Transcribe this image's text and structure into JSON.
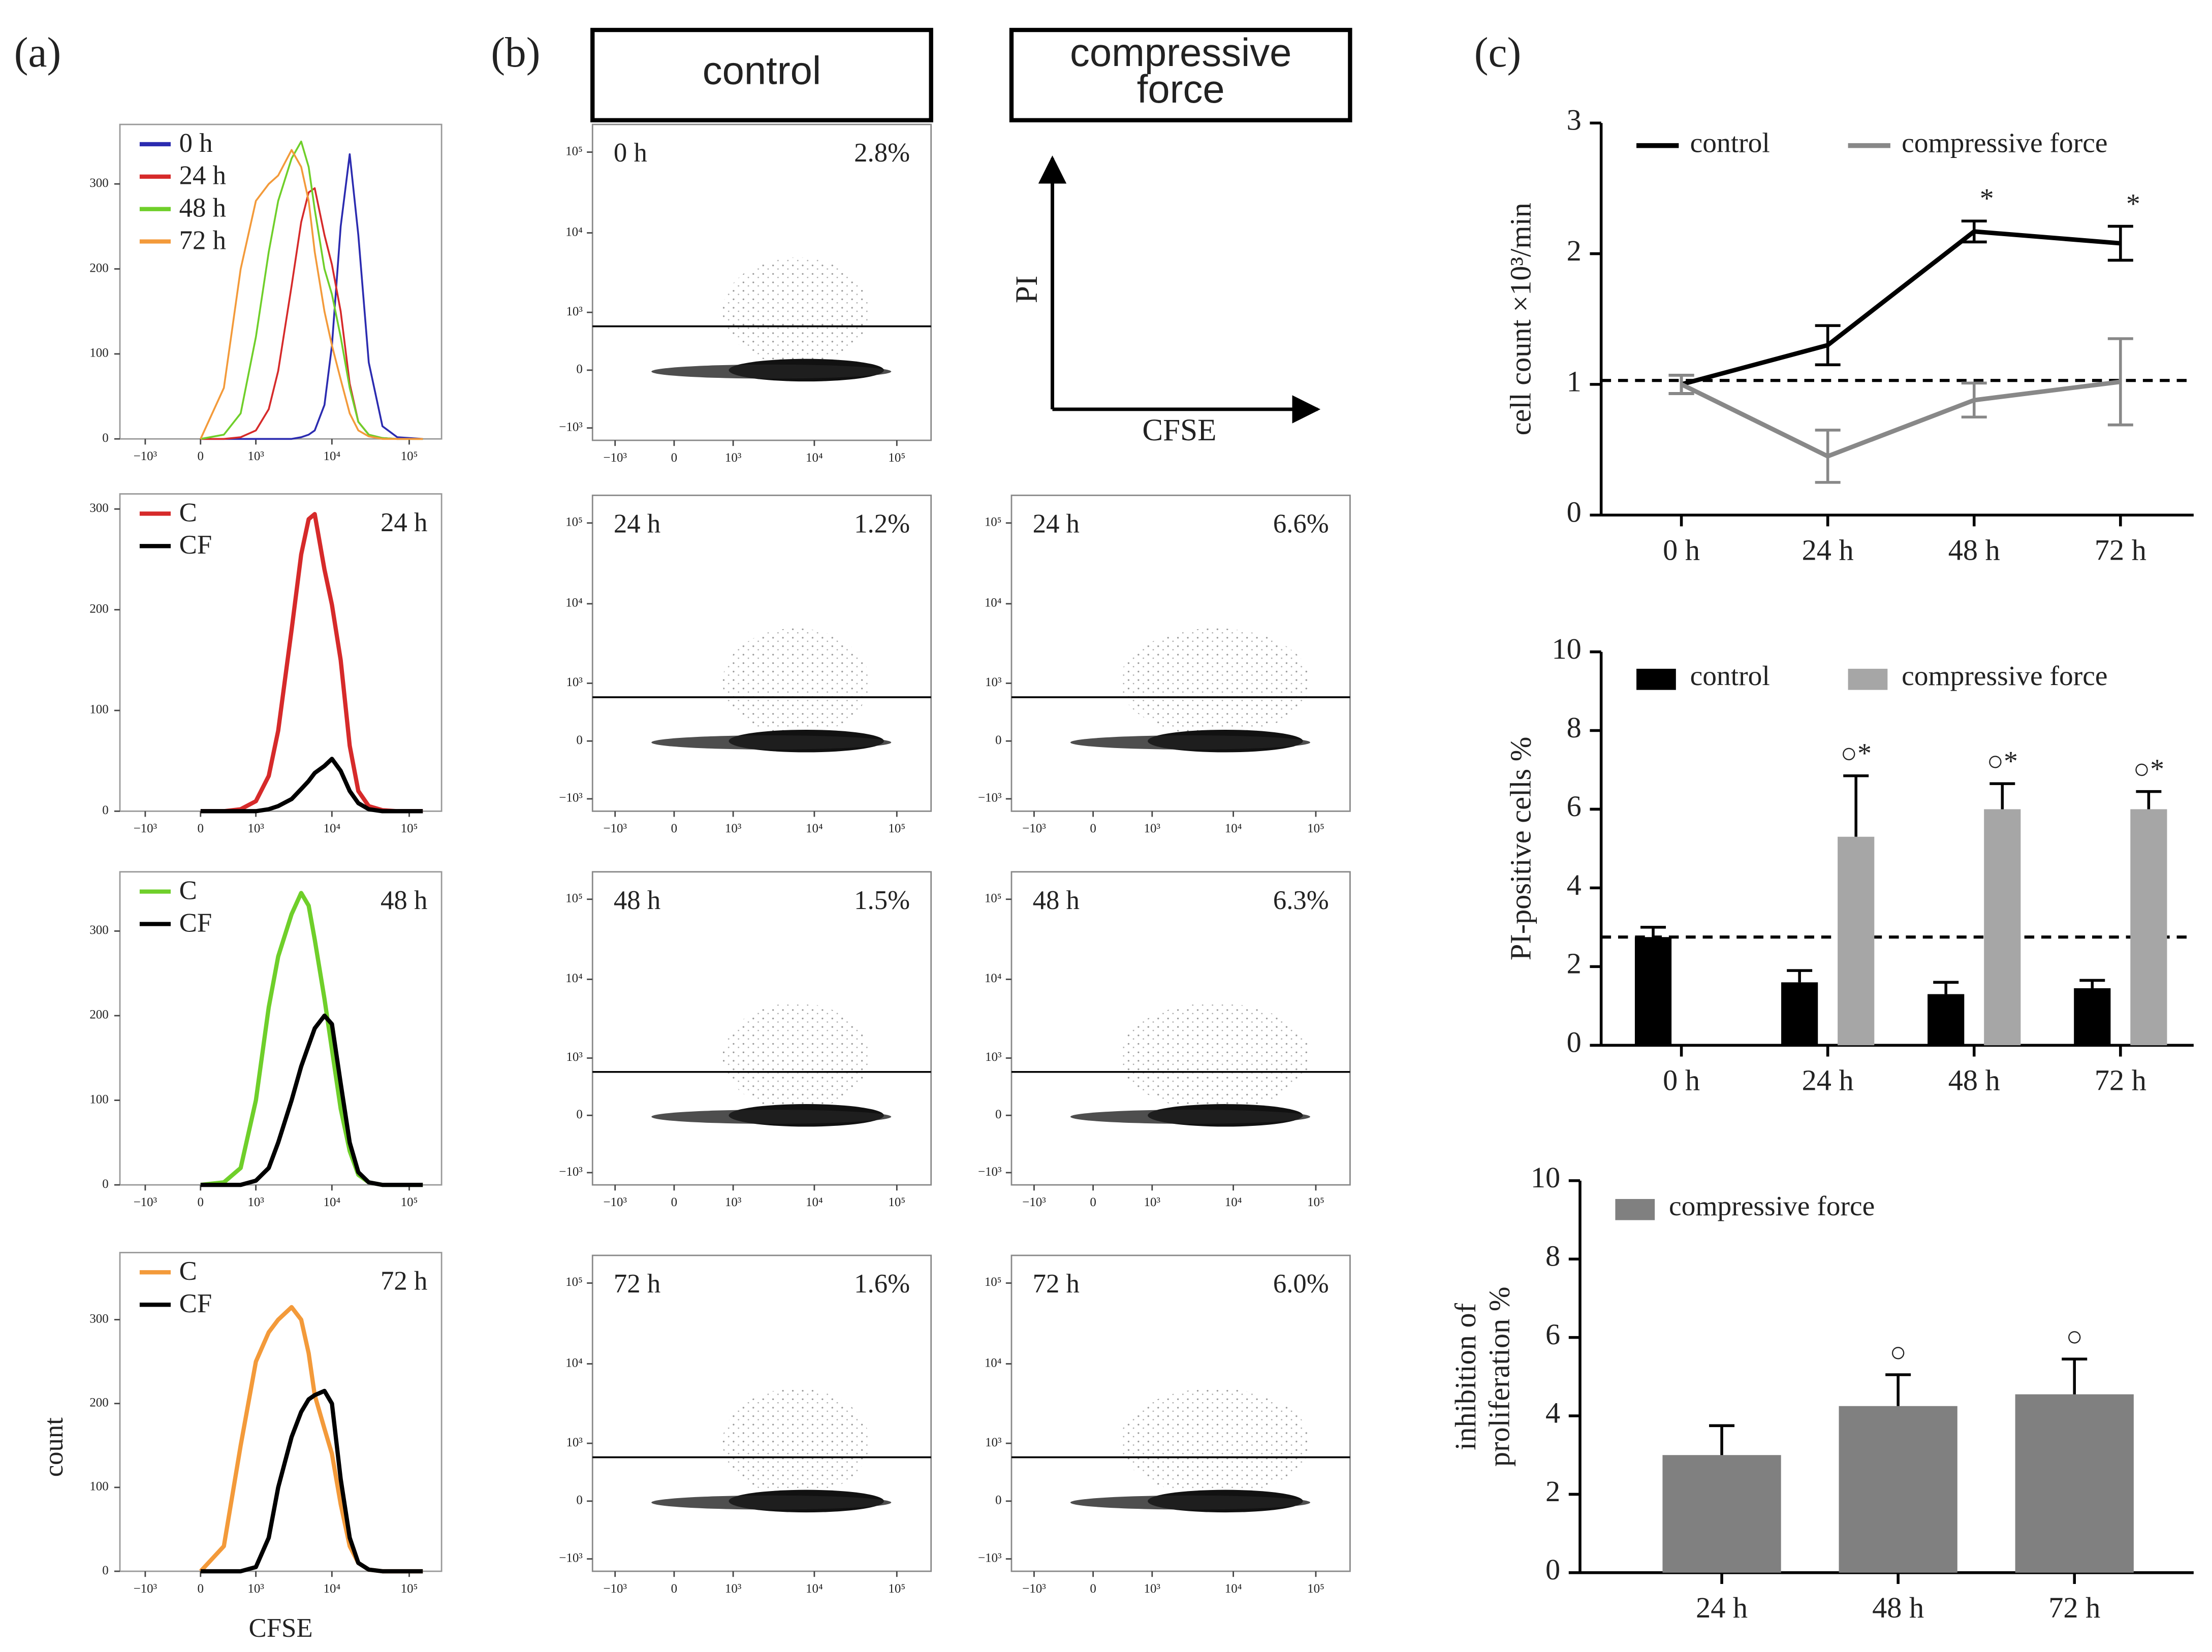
{
  "panel_labels": [
    "(a)",
    "(b)",
    "(c)"
  ],
  "panel_b": {
    "headers": [
      "control",
      "compressive force"
    ],
    "axis_labels": {
      "y": "PI",
      "x": "CFSE"
    },
    "columns": [
      [
        {
          "time": "0 h",
          "percent": "2.8%"
        },
        {
          "time": "24 h",
          "percent": "1.2%"
        },
        {
          "time": "48 h",
          "percent": "1.5%"
        },
        {
          "time": "72 h",
          "percent": "1.6%"
        }
      ],
      [
        {
          "time": "24 h",
          "percent": "6.6%"
        },
        {
          "time": "48 h",
          "percent": "6.3%"
        },
        {
          "time": "72 h",
          "percent": "6.0%"
        }
      ]
    ],
    "xlim": [
      -1930,
      260000
    ],
    "ylim": [
      -1450,
      220000
    ],
    "gate": 640,
    "xticks": [
      {
        "value": -1000,
        "label": "−10³"
      },
      0,
      {
        "value": 1000,
        "label": "10³"
      },
      {
        "value": 10000,
        "label": "10⁴"
      },
      {
        "value": 100000,
        "label": "10⁵"
      }
    ],
    "yticks": [
      {
        "value": -1000,
        "label": "−10³"
      },
      0,
      {
        "value": 1000,
        "label": "10³"
      },
      {
        "value": 10000,
        "label": "10⁴"
      },
      {
        "value": 100000,
        "label": "10⁵"
      }
    ]
  },
  "chart_data": [
    {
      "type": "line",
      "x_scale": "biexponential",
      "x": [
        0,
        300,
        600,
        1000,
        1500,
        2000,
        3000,
        4000,
        5000,
        6000,
        8000,
        10000,
        13000,
        17000,
        22000,
        30000,
        45000,
        70000,
        150000
      ],
      "series": [
        {
          "name": "0 h",
          "color": "#2b2bb0",
          "values": [
            0,
            0,
            0,
            0,
            0,
            0,
            0,
            2,
            5,
            10,
            40,
            110,
            250,
            335,
            240,
            90,
            15,
            2,
            0
          ]
        },
        {
          "name": "24 h",
          "color": "#d62a2a",
          "values": [
            0,
            0,
            2,
            10,
            35,
            80,
            180,
            255,
            290,
            295,
            240,
            205,
            150,
            65,
            20,
            5,
            1,
            0,
            0
          ]
        },
        {
          "name": "48 h",
          "color": "#6fcf2a",
          "values": [
            0,
            5,
            30,
            120,
            220,
            280,
            330,
            350,
            320,
            270,
            200,
            170,
            120,
            60,
            20,
            5,
            1,
            0,
            0
          ]
        },
        {
          "name": "72 h",
          "color": "#f39a3a",
          "values": [
            0,
            60,
            200,
            280,
            300,
            310,
            340,
            320,
            280,
            220,
            150,
            110,
            70,
            30,
            10,
            3,
            0,
            0,
            0
          ]
        }
      ],
      "xlim": [
        -2190,
        262000
      ],
      "ylim": [
        0,
        370
      ],
      "yticks": [
        0,
        100,
        200,
        300
      ],
      "xticks": [
        {
          "value": -1000,
          "label": "−10³"
        },
        0,
        {
          "value": 1000,
          "label": "10³"
        },
        {
          "value": 10000,
          "label": "10⁴"
        },
        {
          "value": 100000,
          "label": "10⁵"
        }
      ]
    },
    {
      "type": "line",
      "x_scale": "biexponential",
      "title": "24 h",
      "x": [
        0,
        300,
        600,
        1000,
        1500,
        2000,
        3000,
        4000,
        5000,
        6000,
        8000,
        10000,
        13000,
        17000,
        22000,
        30000,
        45000,
        70000,
        150000
      ],
      "series": [
        {
          "name": "C",
          "color": "#d62a2a",
          "values": [
            0,
            0,
            2,
            10,
            35,
            80,
            180,
            255,
            290,
            295,
            240,
            205,
            150,
            65,
            20,
            5,
            1,
            0,
            0
          ]
        },
        {
          "name": "CF",
          "color": "#000000",
          "values": [
            0,
            0,
            0,
            0,
            2,
            5,
            12,
            22,
            30,
            38,
            45,
            52,
            40,
            20,
            8,
            2,
            0,
            0,
            0
          ]
        }
      ],
      "xlim": [
        -2190,
        262000
      ],
      "ylim": [
        0,
        315
      ],
      "yticks": [
        0,
        100,
        200,
        300
      ],
      "xticks": [
        {
          "value": -1000,
          "label": "−10³"
        },
        0,
        {
          "value": 1000,
          "label": "10³"
        },
        {
          "value": 10000,
          "label": "10⁴"
        },
        {
          "value": 100000,
          "label": "10⁵"
        }
      ]
    },
    {
      "type": "line",
      "x_scale": "biexponential",
      "title": "48 h",
      "x": [
        0,
        300,
        600,
        1000,
        1500,
        2000,
        3000,
        4000,
        5000,
        6000,
        8000,
        10000,
        13000,
        17000,
        22000,
        30000,
        45000,
        70000,
        150000
      ],
      "series": [
        {
          "name": "C",
          "color": "#6fcf2a",
          "values": [
            0,
            3,
            20,
            100,
            210,
            270,
            320,
            345,
            330,
            290,
            220,
            160,
            90,
            40,
            12,
            3,
            0,
            0,
            0
          ]
        },
        {
          "name": "CF",
          "color": "#000000",
          "values": [
            0,
            0,
            0,
            5,
            20,
            50,
            100,
            140,
            165,
            185,
            200,
            190,
            120,
            50,
            15,
            3,
            0,
            0,
            0
          ]
        }
      ],
      "xlim": [
        -2190,
        262000
      ],
      "ylim": [
        0,
        370
      ],
      "yticks": [
        0,
        100,
        200,
        300
      ],
      "xticks": [
        {
          "value": -1000,
          "label": "−10³"
        },
        0,
        {
          "value": 1000,
          "label": "10³"
        },
        {
          "value": 10000,
          "label": "10⁴"
        },
        {
          "value": 100000,
          "label": "10⁵"
        }
      ]
    },
    {
      "type": "line",
      "x_scale": "biexponential",
      "title": "72 h",
      "x_label": "CFSE",
      "y_label": "count",
      "x": [
        0,
        300,
        600,
        1000,
        1500,
        2000,
        3000,
        4000,
        5000,
        6000,
        8000,
        10000,
        13000,
        17000,
        22000,
        30000,
        45000,
        70000,
        150000
      ],
      "series": [
        {
          "name": "C",
          "color": "#f39a3a",
          "values": [
            0,
            30,
            150,
            250,
            285,
            300,
            315,
            300,
            260,
            210,
            170,
            140,
            80,
            30,
            10,
            2,
            0,
            0,
            0
          ]
        },
        {
          "name": "CF",
          "color": "#000000",
          "values": [
            0,
            0,
            0,
            5,
            40,
            100,
            160,
            190,
            205,
            210,
            215,
            200,
            110,
            40,
            10,
            2,
            0,
            0,
            0
          ]
        }
      ],
      "xlim": [
        -2190,
        262000
      ],
      "ylim": [
        0,
        380
      ],
      "yticks": [
        0,
        100,
        200,
        300
      ],
      "xticks": [
        {
          "value": -1000,
          "label": "−10³"
        },
        0,
        {
          "value": 1000,
          "label": "10³"
        },
        {
          "value": 10000,
          "label": "10⁴"
        },
        {
          "value": 100000,
          "label": "10⁵"
        }
      ]
    },
    {
      "type": "line",
      "y_label": "cell count ×10³/min",
      "categories": [
        "0 h",
        "24 h",
        "48 h",
        "72 h"
      ],
      "series": [
        {
          "name": "control",
          "color": "#000000",
          "values": [
            1.0,
            1.3,
            2.17,
            2.08
          ],
          "errors": [
            0.07,
            0.15,
            0.08,
            0.13
          ],
          "annotations": [
            null,
            null,
            "*",
            "*"
          ]
        },
        {
          "name": "compressive force",
          "color": "#888888",
          "values": [
            1.0,
            0.45,
            0.88,
            1.02
          ],
          "errors": [
            0.07,
            0.2,
            0.13,
            0.33
          ]
        }
      ],
      "reference_line": 1.03,
      "ylim": [
        0,
        3
      ],
      "yticks": [
        0,
        1,
        2,
        3
      ],
      "legend": "top"
    },
    {
      "type": "bar",
      "y_label": "PI-positive cells %",
      "categories": [
        "0 h",
        "24 h",
        "48 h",
        "72 h"
      ],
      "series": [
        {
          "name": "control",
          "color": "#000000",
          "values": [
            2.75,
            1.6,
            1.3,
            1.45
          ],
          "errors": [
            0.25,
            0.3,
            0.3,
            0.2
          ]
        },
        {
          "name": "compressive force",
          "color": "#a6a6a6",
          "values": [
            null,
            5.3,
            6.0,
            6.0
          ],
          "errors": [
            null,
            1.55,
            0.65,
            0.45
          ],
          "annotations": [
            null,
            "○*",
            "○*",
            "○*"
          ]
        }
      ],
      "reference_line": 2.75,
      "ylim": [
        0,
        10
      ],
      "yticks": [
        0,
        2,
        4,
        6,
        8,
        10
      ],
      "legend": "top"
    },
    {
      "type": "bar",
      "y_label": [
        "inhibition of",
        "proliferation %"
      ],
      "categories": [
        "24 h",
        "48 h",
        "72 h"
      ],
      "series": [
        {
          "name": "compressive force",
          "color": "#808080",
          "values": [
            3.0,
            4.25,
            4.55
          ],
          "errors": [
            0.75,
            0.8,
            0.9
          ],
          "annotations": [
            null,
            "○",
            "○"
          ]
        }
      ],
      "ylim": [
        0,
        10
      ],
      "yticks": [
        0,
        2,
        4,
        6,
        8,
        10
      ],
      "legend": "top"
    }
  ]
}
